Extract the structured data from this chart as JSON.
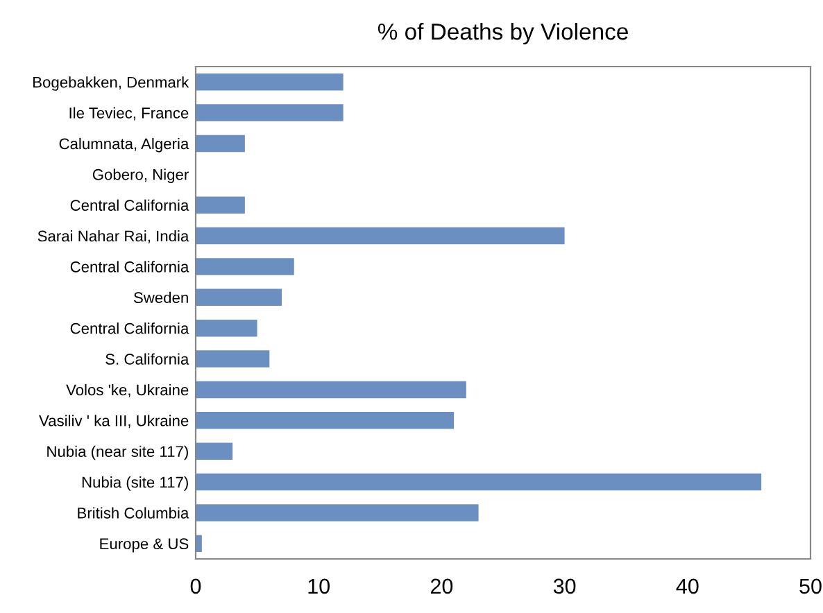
{
  "chart_data": {
    "type": "bar",
    "orientation": "horizontal",
    "title": "% of Deaths by Violence",
    "categories": [
      "Bogebakken, Denmark",
      "Ile Teviec, France",
      "Calumnata, Algeria",
      "Gobero, Niger",
      "Central California",
      "Sarai Nahar Rai, India",
      "Central California",
      "Sweden",
      "Central California",
      "S. California",
      "Volos 'ke, Ukraine",
      "Vasiliv ' ka III, Ukraine",
      "Nubia (near site 117)",
      "Nubia (site 117)",
      "British Columbia",
      "Europe & US"
    ],
    "values": [
      12,
      12,
      4,
      0,
      4,
      30,
      8,
      7,
      5,
      6,
      22,
      21,
      3,
      46,
      23,
      0.5
    ],
    "color": "#6b8fc1",
    "xlim": [
      0,
      50
    ],
    "xticks": [
      0,
      10,
      20,
      30,
      40,
      50
    ],
    "grid": false
  }
}
